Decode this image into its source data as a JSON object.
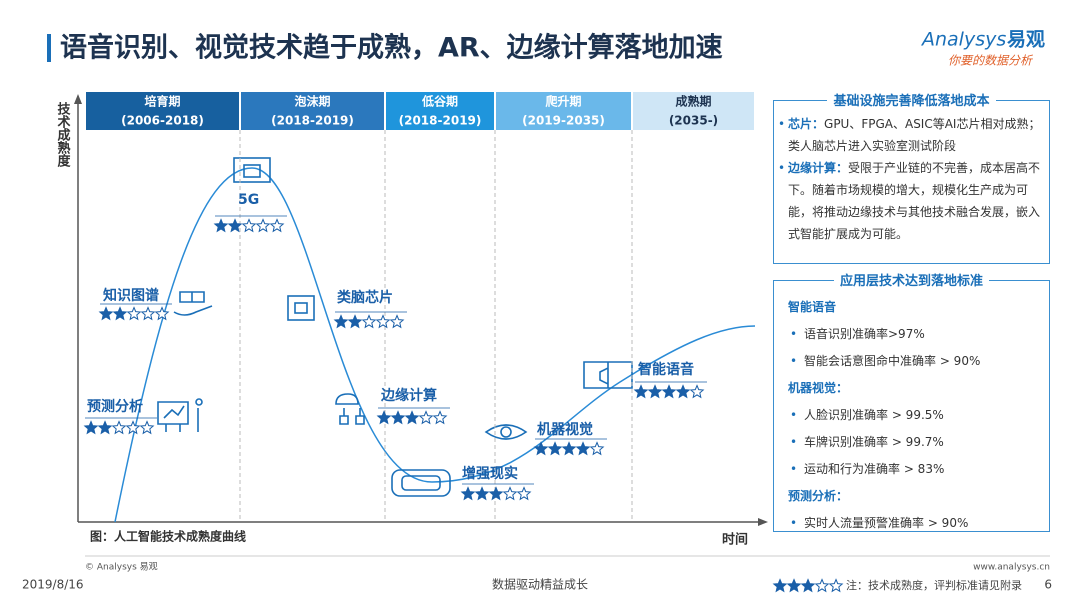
{
  "title": "语音识别、视觉技术趋于成熟，AR、边缘计算落地加速",
  "logo": {
    "brand": "Analysys",
    "name": "易观",
    "tagline": "你要的数据分析"
  },
  "diagram": {
    "y_axis_label": "技术成熟度",
    "x_axis_label": "时间",
    "caption": "图：人工智能技术成熟度曲线",
    "phases": [
      {
        "name": "培育期",
        "period": "(2006-2018)",
        "color": "#17609f"
      },
      {
        "name": "泡沫期",
        "period": "(2018-2019)",
        "color": "#2b78bd"
      },
      {
        "name": "低谷期",
        "period": "(2018-2019)",
        "color": "#1f95dc"
      },
      {
        "name": "爬升期",
        "period": "(2019-2035)",
        "color": "#6ab8ea"
      },
      {
        "name": "成熟期",
        "period": "(2035-)",
        "color": "#cfe6f6"
      }
    ],
    "technologies": [
      {
        "label": "5G",
        "stars": 2
      },
      {
        "label": "知识图谱",
        "stars": 2
      },
      {
        "label": "类脑芯片",
        "stars": 2
      },
      {
        "label": "预测分析",
        "stars": 2
      },
      {
        "label": "边缘计算",
        "stars": 3
      },
      {
        "label": "机器视觉",
        "stars": 4
      },
      {
        "label": "增强现实",
        "stars": 3
      },
      {
        "label": "智能语音",
        "stars": 4
      }
    ]
  },
  "panels": {
    "infrastructure": {
      "title": "基础设施完善降低落地成本",
      "items": [
        {
          "term": "芯片：",
          "text": "GPU、FPGA、ASIC等AI芯片相对成熟；类人脑芯片进入实验室测试阶段"
        },
        {
          "term": "边缘计算：",
          "text": "受限于产业链的不完善，成本居高不下。随着市场规模的增大，规模化生产成为可能，将推动边缘技术与其他技术融合发展，嵌入式智能扩展成为可能。"
        }
      ]
    },
    "application": {
      "title": "应用层技术达到落地标准",
      "groups": [
        {
          "heading": "智能语音",
          "items": [
            "语音识别准确率>97%",
            "智能会话意图命中准确率 > 90%"
          ]
        },
        {
          "heading": "机器视觉：",
          "items": [
            "人脸识别准确率 > 99.5%",
            "车牌识别准确率 > 99.7%",
            "运动和行为准确率 > 83%"
          ]
        },
        {
          "heading": "预测分析：",
          "items": [
            "实时人流量预警准确率 > 90%"
          ]
        }
      ]
    }
  },
  "footer": {
    "copyright": "© Analysys 易观",
    "date": "2019/8/16",
    "slogan": "数据驱动精益成长",
    "website": "www.analysys.cn",
    "legend_stars": 3,
    "legend_note": "注：技术成熟度，评判标准请见附录",
    "page": "6"
  }
}
